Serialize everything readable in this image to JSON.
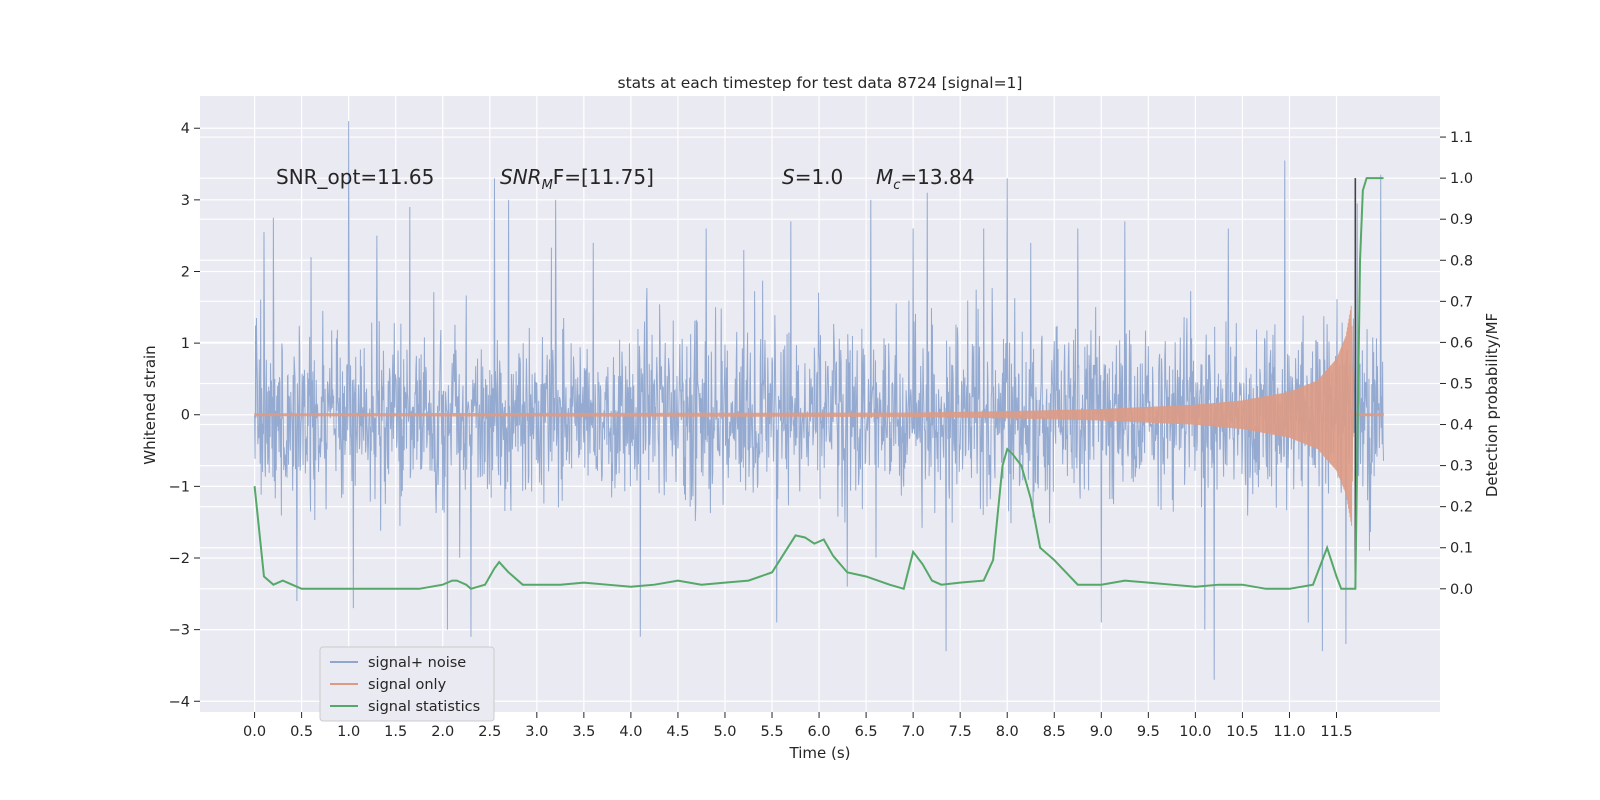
{
  "chart_data": {
    "type": "line",
    "title": "stats at each timestep for test data 8724 [signal=1]",
    "xlabel": "Time (s)",
    "ylabel": "Whitened strain",
    "y2label": "Detection probability/MF",
    "xlim": [
      -0.58,
      12.6
    ],
    "ylim": [
      -4.15,
      4.45
    ],
    "y2lim": [
      -0.3,
      1.2
    ],
    "x_ticks": [
      "0.0",
      "0.5",
      "1.0",
      "1.5",
      "2.0",
      "2.5",
      "3.0",
      "3.5",
      "4.0",
      "4.5",
      "5.0",
      "5.5",
      "6.0",
      "6.5",
      "7.0",
      "7.5",
      "8.0",
      "8.5",
      "9.0",
      "9.5",
      "10.0",
      "10.5",
      "11.0",
      "11.5"
    ],
    "y_ticks": [
      "4",
      "3",
      "2",
      "1",
      "0",
      "−1",
      "−2",
      "−3",
      "−4"
    ],
    "y2_ticks": [
      "1.1",
      "1.0",
      "0.9",
      "0.8",
      "0.7",
      "0.6",
      "0.5",
      "0.4",
      "0.3",
      "0.2",
      "0.1",
      "0.0"
    ],
    "grid": true,
    "legend_placement": "lower-left",
    "annotations": {
      "snr_opt": "SNR_opt=11.65",
      "snr_mf_base": "SNR",
      "snr_mf_sub": "M",
      "snr_mf_rest": "F=[11.75]",
      "s_sym": "S",
      "s_val": "=1.0",
      "mc_sym": "M",
      "mc_sub": "c",
      "mc_val": "=13.84"
    },
    "series": [
      {
        "name": "signal+ noise",
        "color": "#8fa6cf",
        "x_range": [
          0.0,
          12.0
        ],
        "envelope": {
          "typical_abs": 1.4,
          "peaks": [
            [
              0.02,
              1.35
            ],
            [
              0.1,
              2.55
            ],
            [
              0.2,
              2.75
            ],
            [
              0.45,
              -2.6
            ],
            [
              0.6,
              2.2
            ],
            [
              1.0,
              4.1
            ],
            [
              1.05,
              -2.7
            ],
            [
              1.3,
              2.5
            ],
            [
              1.65,
              2.9
            ],
            [
              2.05,
              -3.0
            ],
            [
              2.3,
              -3.1
            ],
            [
              2.55,
              3.3
            ],
            [
              2.7,
              3.0
            ],
            [
              3.2,
              3.0
            ],
            [
              3.6,
              2.4
            ],
            [
              4.1,
              -3.1
            ],
            [
              4.8,
              2.6
            ],
            [
              5.2,
              2.3
            ],
            [
              5.55,
              -2.9
            ],
            [
              5.7,
              2.7
            ],
            [
              6.3,
              -2.4
            ],
            [
              6.55,
              3.0
            ],
            [
              7.0,
              2.6
            ],
            [
              7.15,
              3.1
            ],
            [
              7.35,
              -3.3
            ],
            [
              7.75,
              2.6
            ],
            [
              8.0,
              3.3
            ],
            [
              8.25,
              2.4
            ],
            [
              8.75,
              2.6
            ],
            [
              9.0,
              -2.9
            ],
            [
              9.25,
              2.7
            ],
            [
              10.1,
              -3.0
            ],
            [
              10.2,
              -3.7
            ],
            [
              10.35,
              2.6
            ],
            [
              10.95,
              3.55
            ],
            [
              11.2,
              -2.9
            ],
            [
              11.35,
              -3.3
            ],
            [
              11.6,
              -3.2
            ],
            [
              11.72,
              2.95
            ],
            [
              11.85,
              -1.9
            ],
            [
              11.97,
              3.35
            ]
          ]
        }
      },
      {
        "name": "signal only",
        "color": "#dd9a84",
        "x_range": [
          0.0,
          12.0
        ],
        "envelope_desc": "chirp: amplitude ~0.02 until 7 s, growing to ~1.3 at 11.65 s, then 0",
        "amplitude": [
          [
            0.0,
            0.02
          ],
          [
            7.0,
            0.03
          ],
          [
            8.0,
            0.05
          ],
          [
            9.0,
            0.08
          ],
          [
            10.0,
            0.14
          ],
          [
            10.5,
            0.2
          ],
          [
            11.0,
            0.32
          ],
          [
            11.3,
            0.48
          ],
          [
            11.5,
            0.78
          ],
          [
            11.6,
            1.1
          ],
          [
            11.66,
            1.55
          ],
          [
            11.68,
            0.0
          ]
        ]
      },
      {
        "name": "signal statistics",
        "color": "#55a868",
        "axis": "right",
        "x": [
          0.0,
          0.1,
          0.2,
          0.3,
          0.4,
          0.5,
          0.6,
          0.75,
          1.0,
          1.25,
          1.5,
          1.75,
          2.0,
          2.1,
          2.15,
          2.25,
          2.3,
          2.45,
          2.55,
          2.6,
          2.7,
          2.85,
          3.0,
          3.25,
          3.5,
          3.75,
          4.0,
          4.25,
          4.5,
          4.75,
          5.0,
          5.25,
          5.5,
          5.75,
          5.85,
          5.95,
          6.05,
          6.15,
          6.3,
          6.5,
          6.75,
          6.9,
          7.0,
          7.1,
          7.2,
          7.3,
          7.5,
          7.75,
          7.85,
          7.95,
          8.0,
          8.05,
          8.15,
          8.25,
          8.35,
          8.5,
          8.75,
          9.0,
          9.25,
          9.5,
          9.75,
          10.0,
          10.25,
          10.5,
          10.75,
          11.0,
          11.25,
          11.4,
          11.5,
          11.55,
          11.65,
          11.7,
          11.75,
          11.78,
          11.82,
          11.88,
          12.0
        ],
        "y": [
          0.25,
          0.03,
          0.01,
          0.02,
          0.01,
          0.0,
          0.0,
          0.0,
          0.0,
          0.0,
          0.0,
          0.0,
          0.01,
          0.02,
          0.02,
          0.01,
          0.0,
          0.01,
          0.05,
          0.065,
          0.04,
          0.01,
          0.01,
          0.01,
          0.015,
          0.01,
          0.005,
          0.01,
          0.02,
          0.01,
          0.015,
          0.02,
          0.04,
          0.13,
          0.125,
          0.11,
          0.12,
          0.08,
          0.04,
          0.03,
          0.01,
          0.0,
          0.09,
          0.06,
          0.02,
          0.01,
          0.015,
          0.02,
          0.07,
          0.3,
          0.34,
          0.33,
          0.3,
          0.22,
          0.1,
          0.07,
          0.01,
          0.01,
          0.02,
          0.015,
          0.01,
          0.005,
          0.01,
          0.01,
          0.0,
          0.0,
          0.01,
          0.1,
          0.03,
          0.0,
          0.0,
          0.0,
          0.8,
          0.97,
          1.0,
          1.0,
          1.0
        ]
      }
    ],
    "vertical_marker": {
      "x": 11.7,
      "color": "#444444"
    }
  },
  "legend": {
    "items": [
      {
        "label": "signal+ noise",
        "color": "#8fa6cf"
      },
      {
        "label": "signal only",
        "color": "#dd9a84"
      },
      {
        "label": "signal statistics",
        "color": "#55a868"
      }
    ]
  }
}
